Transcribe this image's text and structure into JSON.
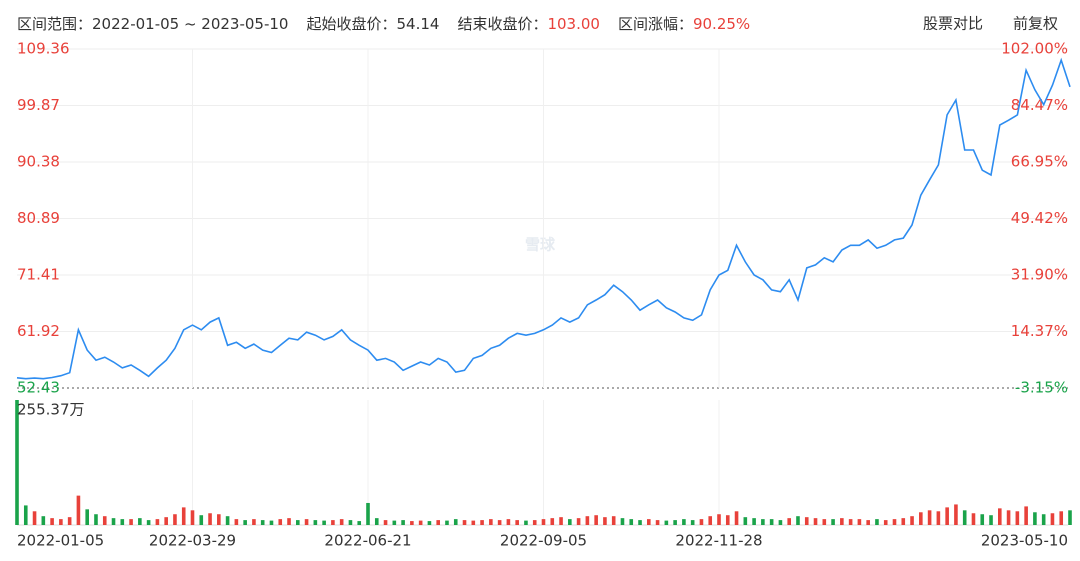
{
  "header": {
    "items": [
      {
        "label": "区间范围：",
        "value": "2022-01-05 ~ 2023-05-10"
      },
      {
        "label": "起始收盘价：",
        "value": "54.14"
      },
      {
        "label": "结束收盘价：",
        "value": "103.00"
      },
      {
        "label": "区间涨幅：",
        "value": "90.25%"
      }
    ],
    "buttons": [
      "股票对比",
      "前复权"
    ]
  },
  "chart_data": {
    "type": "line",
    "watermark": "雪球",
    "categories": [
      "2022-01-05",
      null,
      null,
      null,
      null,
      null,
      null,
      null,
      null,
      null,
      null,
      null,
      null,
      null,
      null,
      null,
      null,
      null,
      null,
      null,
      "2022-03-29",
      null,
      null,
      null,
      null,
      null,
      null,
      null,
      null,
      null,
      null,
      null,
      null,
      null,
      null,
      null,
      null,
      null,
      null,
      null,
      "2022-06-21",
      null,
      null,
      null,
      null,
      null,
      null,
      null,
      null,
      null,
      null,
      null,
      null,
      null,
      null,
      null,
      null,
      null,
      null,
      null,
      "2022-09-05",
      null,
      null,
      null,
      null,
      null,
      null,
      null,
      null,
      null,
      null,
      null,
      null,
      null,
      null,
      null,
      null,
      null,
      null,
      null,
      "2022-11-28",
      null,
      null,
      null,
      null,
      null,
      null,
      null,
      null,
      null,
      null,
      null,
      null,
      null,
      null,
      null,
      null,
      null,
      null,
      null,
      null,
      null,
      null,
      null,
      null,
      null,
      null,
      null,
      null,
      null,
      null,
      null,
      null,
      null,
      null,
      null,
      null,
      null,
      null,
      null,
      "2023-05-10"
    ],
    "series": [
      {
        "name": "收盘价",
        "color": "#2d8cf0",
        "values": [
          54.14,
          54.0,
          54.1,
          54.0,
          54.2,
          54.5,
          55.0,
          62.2,
          58.8,
          57.1,
          57.6,
          56.8,
          55.8,
          56.3,
          55.4,
          54.4,
          55.8,
          57.1,
          59.1,
          62.2,
          63.0,
          62.2,
          63.5,
          64.2,
          59.6,
          60.1,
          59.1,
          59.8,
          58.8,
          58.4,
          59.6,
          60.8,
          60.5,
          61.8,
          61.3,
          60.5,
          61.1,
          62.2,
          60.5,
          59.6,
          58.8,
          57.1,
          57.4,
          56.8,
          55.4,
          56.1,
          56.8,
          56.3,
          57.4,
          56.8,
          55.1,
          55.4,
          57.4,
          57.9,
          59.1,
          59.6,
          60.8,
          61.6,
          61.3,
          61.6,
          62.2,
          63.0,
          64.2,
          63.5,
          64.2,
          66.4,
          67.2,
          68.1,
          69.7,
          68.6,
          67.2,
          65.5,
          66.4,
          67.2,
          65.9,
          65.2,
          64.2,
          63.8,
          64.7,
          68.9,
          71.4,
          72.2,
          76.4,
          73.6,
          71.4,
          70.6,
          68.9,
          68.6,
          70.6,
          67.2,
          72.6,
          73.1,
          74.3,
          73.6,
          75.6,
          76.4,
          76.4,
          77.3,
          75.9,
          76.4,
          77.3,
          77.6,
          79.8,
          84.8,
          87.4,
          89.9,
          98.3,
          100.8,
          92.4,
          92.4,
          89.0,
          88.2,
          96.6,
          97.4,
          98.3,
          105.8,
          102.5,
          100.0,
          103.3,
          107.5,
          103.0
        ]
      }
    ],
    "volume": {
      "up_color": "#e8413a",
      "down_color": "#1aa34a",
      "values": [
        255.37,
        40,
        28,
        18,
        14,
        12,
        16,
        60,
        32,
        22,
        18,
        14,
        12,
        12,
        14,
        10,
        12,
        16,
        22,
        36,
        30,
        20,
        24,
        22,
        18,
        12,
        10,
        12,
        10,
        9,
        12,
        14,
        10,
        12,
        10,
        9,
        10,
        12,
        10,
        8,
        45,
        14,
        10,
        9,
        10,
        8,
        9,
        8,
        10,
        9,
        12,
        10,
        9,
        10,
        12,
        10,
        12,
        10,
        9,
        10,
        12,
        14,
        16,
        12,
        14,
        18,
        20,
        16,
        18,
        14,
        12,
        10,
        12,
        10,
        9,
        10,
        12,
        10,
        12,
        18,
        22,
        20,
        28,
        16,
        14,
        12,
        12,
        10,
        14,
        18,
        16,
        14,
        12,
        12,
        14,
        12,
        12,
        10,
        12,
        10,
        12,
        14,
        18,
        26,
        30,
        28,
        36,
        42,
        30,
        24,
        22,
        20,
        34,
        30,
        28,
        38,
        26,
        22,
        24,
        28,
        30
      ],
      "ylim": [
        0,
        255.37
      ],
      "yticks": [
        {
          "value": 255.37,
          "label": "255.37万"
        }
      ]
    },
    "ylim": [
      52.43,
      109.36
    ],
    "yticks": [
      52.43,
      61.92,
      71.41,
      80.89,
      90.38,
      99.87,
      109.36
    ],
    "y2lim": [
      -3.15,
      102.0
    ],
    "y2ticks": [
      {
        "value": -3.15,
        "label": "-3.15%"
      },
      {
        "value": 14.37,
        "label": "14.37%"
      },
      {
        "value": 31.9,
        "label": "31.90%"
      },
      {
        "value": 49.42,
        "label": "49.42%"
      },
      {
        "value": 66.95,
        "label": "66.95%"
      },
      {
        "value": 84.47,
        "label": "84.47%"
      },
      {
        "value": 102.0,
        "label": "102.00%"
      }
    ],
    "grid": true,
    "up_color": "#e8413a",
    "down_color": "#1aa34a"
  }
}
